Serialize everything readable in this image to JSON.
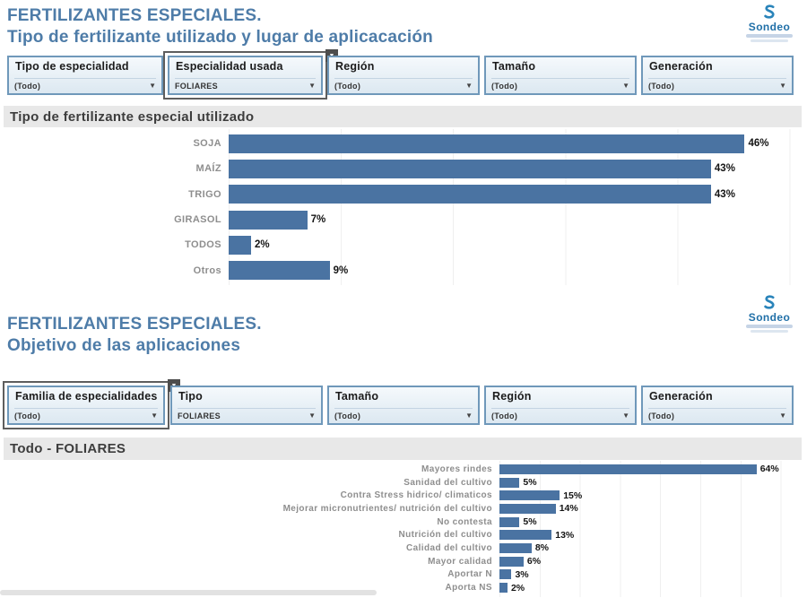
{
  "brand": {
    "name": "Sondeo"
  },
  "sections": [
    {
      "title_line1": "FERTILIZANTES ESPECIALES.",
      "title_line2": "Tipo de fertilizante utilizado y lugar de aplicacación",
      "filters": [
        {
          "label": "Tipo de especialidad",
          "value": "(Todo)",
          "selected": false
        },
        {
          "label": "Especialidad usada",
          "value": "FOLIARES",
          "selected": true
        },
        {
          "label": "Región",
          "value": "(Todo)",
          "selected": false
        },
        {
          "label": "Tamaño",
          "value": "(Todo)",
          "selected": false
        },
        {
          "label": "Generación",
          "value": "(Todo)",
          "selected": false
        }
      ],
      "chart_header": "Tipo de fertilizante especial utilizado"
    },
    {
      "title_line1": "FERTILIZANTES ESPECIALES.",
      "title_line2": "Objetivo de las aplicaciones",
      "filters": [
        {
          "label": "Familia de especialidades",
          "value": "(Todo)",
          "selected": true
        },
        {
          "label": "Tipo",
          "value": "FOLIARES",
          "selected": false
        },
        {
          "label": "Tamaño",
          "value": "(Todo)",
          "selected": false
        },
        {
          "label": "Región",
          "value": "(Todo)",
          "selected": false
        },
        {
          "label": "Generación",
          "value": "(Todo)",
          "selected": false
        }
      ],
      "chart_header": "Todo -  FOLIARES"
    }
  ],
  "chart_data": [
    {
      "type": "bar",
      "orientation": "horizontal",
      "title": "Tipo de fertilizante especial utilizado",
      "categories": [
        "SOJA",
        "MAÍZ",
        "TRIGO",
        "GIRASOL",
        "TODOS",
        "Otros"
      ],
      "values": [
        46,
        43,
        43,
        7,
        2,
        9
      ],
      "unit": "%",
      "xlim": [
        0,
        51
      ],
      "grid": true,
      "bar_color": "#4a73a2"
    },
    {
      "type": "bar",
      "orientation": "horizontal",
      "title": "Todo - FOLIARES",
      "categories": [
        "Mayores rindes",
        "Sanidad del cultivo",
        "Contra Stress hidrico/ climaticos",
        "Mejorar micronutrientes/ nutrición del cultivo",
        "No contesta",
        "Nutrición del cultivo",
        "Calidad del cultivo",
        "Mayor calidad",
        "Aportar N",
        "Aporta NS"
      ],
      "values": [
        64,
        5,
        15,
        14,
        5,
        13,
        8,
        6,
        3,
        2
      ],
      "unit": "%",
      "xlim": [
        0,
        75
      ],
      "grid": true,
      "bar_color": "#4a73a2"
    }
  ],
  "colors": {
    "title_blue": "#4e7ca8",
    "bar_blue": "#4a73a2",
    "filter_border": "#6f98ba",
    "header_band": "#e8e8e8"
  }
}
